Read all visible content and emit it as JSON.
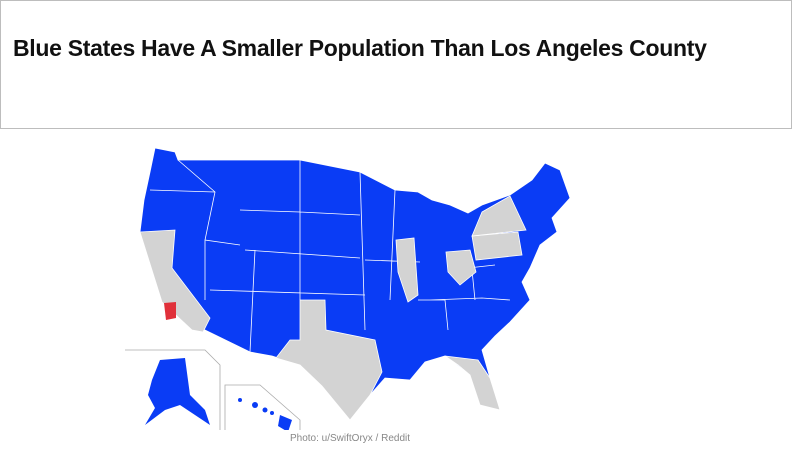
{
  "header": {
    "title": "Blue States Have A Smaller Population Than Los Angeles County"
  },
  "image": {
    "caption": "Photo: u/SwiftOryx / Reddit"
  }
}
